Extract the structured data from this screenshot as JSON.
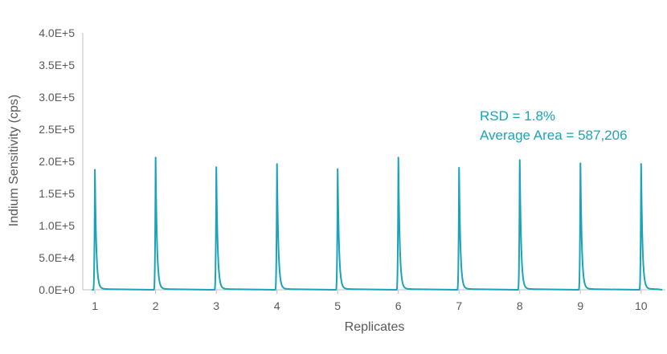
{
  "chart_data": {
    "type": "line",
    "title": "",
    "xlabel": "Replicates",
    "ylabel": "Indium Sensitivity (cps)",
    "xlim": [
      0.8,
      10.4
    ],
    "ylim": [
      0,
      400000
    ],
    "y_ticks": [
      {
        "value": 0,
        "label": "0.0E+0"
      },
      {
        "value": 50000,
        "label": "5.0E+4"
      },
      {
        "value": 100000,
        "label": "1.0E+5"
      },
      {
        "value": 150000,
        "label": "1.5E+5"
      },
      {
        "value": 200000,
        "label": "2.0E+5"
      },
      {
        "value": 250000,
        "label": "2.5E+5"
      },
      {
        "value": 300000,
        "label": "3.0E+5"
      },
      {
        "value": 350000,
        "label": "3.5E+5"
      },
      {
        "value": 400000,
        "label": "4.0E+5"
      }
    ],
    "x_ticks": [
      {
        "value": 1,
        "label": "1"
      },
      {
        "value": 2,
        "label": "2"
      },
      {
        "value": 3,
        "label": "3"
      },
      {
        "value": 4,
        "label": "4"
      },
      {
        "value": 5,
        "label": "5"
      },
      {
        "value": 6,
        "label": "6"
      },
      {
        "value": 7,
        "label": "7"
      },
      {
        "value": 8,
        "label": "8"
      },
      {
        "value": 9,
        "label": "9"
      },
      {
        "value": 10,
        "label": "10"
      }
    ],
    "series": [
      {
        "color": "#1ba3b8",
        "peaks": [
          {
            "x": 1,
            "y": 187000
          },
          {
            "x": 2,
            "y": 206000
          },
          {
            "x": 3,
            "y": 191000
          },
          {
            "x": 4,
            "y": 196000
          },
          {
            "x": 5,
            "y": 188000
          },
          {
            "x": 6,
            "y": 206000
          },
          {
            "x": 7,
            "y": 190000
          },
          {
            "x": 8,
            "y": 202000
          },
          {
            "x": 9,
            "y": 197000
          },
          {
            "x": 10,
            "y": 196000
          }
        ]
      }
    ],
    "annotations": [
      "RSD = 1.8%",
      "Average Area = 587,206"
    ],
    "grid": false,
    "legend": "none",
    "colors": {
      "line": "#1ba3b8",
      "annotation": "#1ba3b8",
      "axis": "#bfbfbf",
      "text": "#595959"
    }
  }
}
